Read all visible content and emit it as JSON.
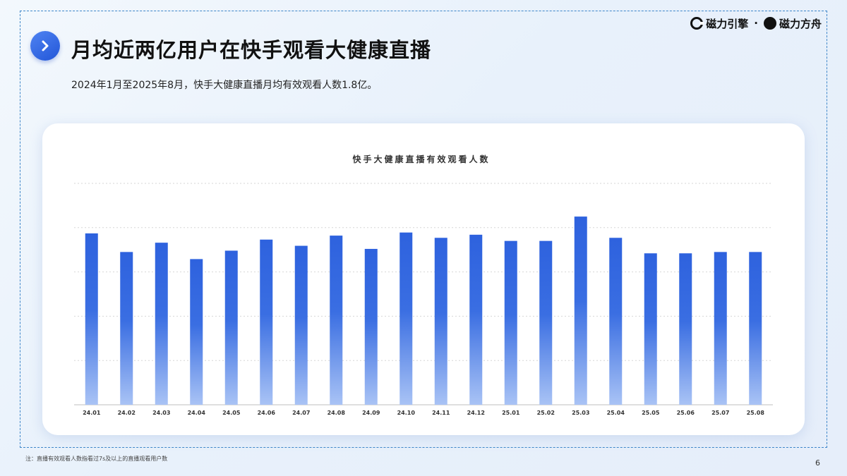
{
  "header": {
    "title": "月均近两亿用户在快手观看大健康直播",
    "subtitle": "2024年1月至2025年8月，快手大健康直播月均有效观看人数1.8亿。"
  },
  "brand": {
    "left_name": "磁力引擎",
    "separator": "·",
    "right_name": "磁力方舟"
  },
  "footnote": "注：直播有效观看人数指看过7s及以上的直播观看用户数",
  "page_number": "6",
  "colors": {
    "accent": "#2f64de",
    "bar_top": "#2e62de",
    "bar_bottom": "#a9c3f5",
    "frame": "#3e86c9"
  },
  "chart_data": {
    "type": "bar",
    "title": "快手大健康直播有效观看人数",
    "categories": [
      "24.01",
      "24.02",
      "24.03",
      "24.04",
      "24.05",
      "24.06",
      "24.07",
      "24.08",
      "24.09",
      "24.10",
      "24.11",
      "24.12",
      "25.01",
      "25.02",
      "25.03",
      "25.04",
      "25.05",
      "25.06",
      "25.07",
      "25.08"
    ],
    "values": [
      3.87,
      3.45,
      3.66,
      3.29,
      3.48,
      3.73,
      3.59,
      3.82,
      3.52,
      3.89,
      3.77,
      3.84,
      3.7,
      3.7,
      4.25,
      3.77,
      3.42,
      3.42,
      3.45,
      3.45
    ],
    "ylim": [
      0,
      5
    ],
    "y_ticks_shown": false,
    "grid": true,
    "legend": "none"
  }
}
